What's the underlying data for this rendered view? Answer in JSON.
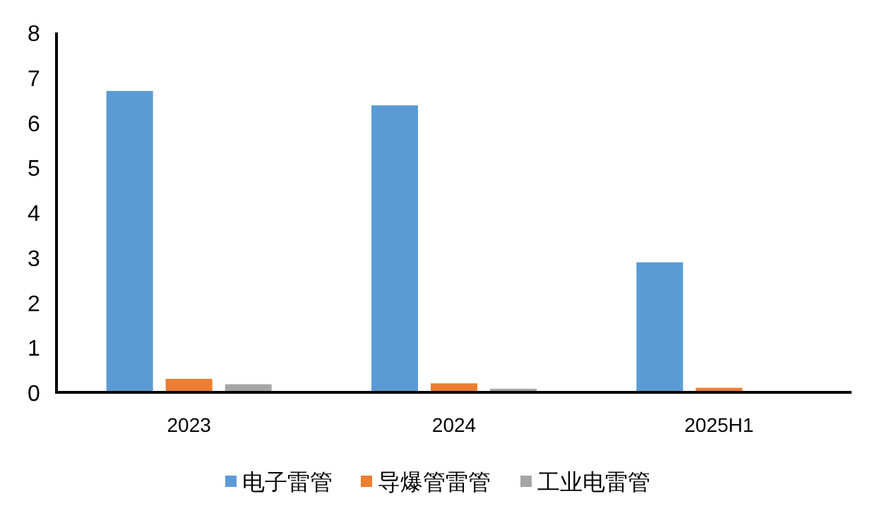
{
  "chart_data": {
    "type": "bar",
    "categories": [
      "2023",
      "2024",
      "2025H1"
    ],
    "series": [
      {
        "name": "电子雷管",
        "color": "#5b9bd5",
        "values": [
          6.7,
          6.38,
          2.89
        ]
      },
      {
        "name": "导爆管雷管",
        "color": "#ed7d31",
        "values": [
          0.3,
          0.2,
          0.1
        ]
      },
      {
        "name": "工业电雷管",
        "color": "#a5a5a5",
        "values": [
          0.18,
          0.08,
          0
        ]
      }
    ],
    "ylim": [
      0,
      8
    ],
    "yticks": [
      0,
      1,
      2,
      3,
      4,
      5,
      6,
      7,
      8
    ],
    "grid": false,
    "legend": "bottom"
  }
}
